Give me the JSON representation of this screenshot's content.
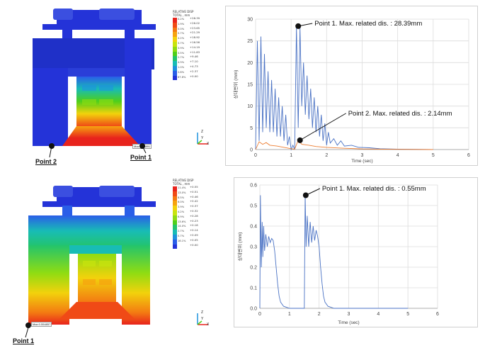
{
  "top_panel": {
    "legend_title": "RELATIVE DISP",
    "legend_subtitle": "TOTAL , mm",
    "legend_rows": [
      {
        "pct": "0.2%",
        "color": "#e8231c"
      },
      {
        "pct": "1.9%",
        "color": "#f04a16"
      },
      {
        "pct": "0.0%",
        "color": "#f37a12"
      },
      {
        "pct": "0.7%",
        "color": "#f6a30f"
      },
      {
        "pct": "4.2%",
        "color": "#f2d20c"
      },
      {
        "pct": "3.7%",
        "color": "#c8e40e"
      },
      {
        "pct": "3.9%",
        "color": "#8fdc12"
      },
      {
        "pct": "3.5%",
        "color": "#4fcf1a"
      },
      {
        "pct": "2.7%",
        "color": "#23c46c"
      },
      {
        "pct": "4.9%",
        "color": "#18bcb5"
      },
      {
        "pct": "1.0%",
        "color": "#1e92dd"
      },
      {
        "pct": "2.8%",
        "color": "#2a5ee8"
      },
      {
        "pct": "67.8%",
        "color": "#2433d8"
      }
    ],
    "legend_values": [
      "+28.39",
      "+26.02",
      "+23.65",
      "+21.29",
      "+18.92",
      "+16.56",
      "+14.19",
      "+11.83",
      "+9.46",
      "+7.10",
      "+4.73",
      "+2.37",
      "+0.00"
    ],
    "max_tag": "Max:28.3891",
    "point_labels": [
      "Point 2",
      "Point 1"
    ],
    "axis_labels": {
      "z": "Z",
      "x": "X",
      "y": "Y"
    }
  },
  "bottom_panel": {
    "legend_title": "RELATIVE DISP",
    "legend_subtitle": "TOTAL , mm",
    "legend_rows": [
      {
        "pct": "11.4%",
        "color": "#e8231c"
      },
      {
        "pct": "13.0%",
        "color": "#f04a16"
      },
      {
        "pct": "8.5%",
        "color": "#f37a12"
      },
      {
        "pct": "6.0%",
        "color": "#f6a30f"
      },
      {
        "pct": "3.9%",
        "color": "#f2d20c"
      },
      {
        "pct": "4.2%",
        "color": "#c8e40e"
      },
      {
        "pct": "6.9%",
        "color": "#8fdc12"
      },
      {
        "pct": "13.6%",
        "color": "#4fcf1a"
      },
      {
        "pct": "14.0%",
        "color": "#23c46c"
      },
      {
        "pct": "2.7%",
        "color": "#18bcb5"
      },
      {
        "pct": "0.7%",
        "color": "#1e92dd"
      },
      {
        "pct": "16.1%",
        "color": "#2a5ee8"
      },
      {
        "pct": "",
        "color": "#2433d8"
      }
    ],
    "legend_values": [
      "+0.55",
      "+0.51",
      "+0.46",
      "+0.42",
      "+0.37",
      "+0.32",
      "+0.28",
      "+0.23",
      "+0.18",
      "+0.14",
      "+0.09",
      "+0.05",
      "+0.00"
    ],
    "max_tag": "Max:0.554857",
    "point_labels": [
      "Point 1"
    ],
    "axis_labels": {
      "z": "Z",
      "x": "X",
      "y": "Y"
    }
  },
  "chart_data": [
    {
      "type": "line",
      "xlabel": "Time (sec)",
      "ylabel": "상대변위 (mm)",
      "xlim": [
        0,
        6
      ],
      "ylim": [
        0,
        30
      ],
      "xticks": [
        0,
        1,
        2,
        3,
        4,
        5,
        6
      ],
      "yticks": [
        0,
        5,
        10,
        15,
        20,
        25,
        30
      ],
      "grid": true,
      "series": [
        {
          "color": "#4a72c4",
          "x": [
            0,
            0.05,
            0.1,
            0.15,
            0.2,
            0.25,
            0.3,
            0.35,
            0.4,
            0.45,
            0.5,
            0.55,
            0.6,
            0.65,
            0.7,
            0.75,
            0.8,
            0.85,
            0.9,
            0.95,
            1.0,
            1.05,
            1.1,
            1.15,
            1.2,
            1.25,
            1.3,
            1.35,
            1.4,
            1.45,
            1.5,
            1.55,
            1.6,
            1.65,
            1.7,
            1.75,
            1.8,
            1.85,
            1.9,
            1.95,
            2.0,
            2.05,
            2.1,
            2.2,
            2.3,
            2.4,
            2.5,
            2.7,
            2.9,
            3.2,
            3.5,
            4.0,
            4.5,
            5.0
          ],
          "y": [
            0,
            25,
            2,
            26,
            4,
            22,
            5,
            18,
            4,
            16,
            4,
            14,
            3,
            12,
            3,
            10,
            2,
            8,
            1,
            3,
            0,
            1,
            0,
            28.4,
            5,
            28,
            10,
            20,
            8,
            17,
            7,
            14,
            5,
            12,
            4,
            10,
            3,
            8,
            2,
            6,
            1,
            4,
            1.5,
            2.5,
            1,
            2,
            0.8,
            1,
            0.5,
            0.4,
            0.2,
            0.1,
            0.05,
            0
          ]
        },
        {
          "color": "#ed7d31",
          "x": [
            0,
            0.1,
            0.2,
            0.3,
            0.4,
            0.6,
            0.8,
            1.0,
            1.1,
            1.2,
            1.3,
            1.5,
            1.7,
            2.0,
            2.5,
            3.0,
            4.0,
            5.0
          ],
          "y": [
            0,
            1.8,
            1.2,
            1.6,
            1.0,
            0.8,
            0.5,
            0.2,
            0.1,
            2.14,
            1.2,
            1.0,
            0.7,
            0.5,
            0.3,
            0.15,
            0.05,
            0
          ]
        }
      ],
      "annotations": [
        {
          "text": "Point 1. Max. related dis. : 28.39mm",
          "x": 1.2,
          "y": 28.39
        },
        {
          "text": "Point 2. Max. related dis. : 2.14mm",
          "x": 1.25,
          "y": 2.14
        }
      ]
    },
    {
      "type": "line",
      "xlabel": "Time (sec)",
      "ylabel": "상대변위 (mm)",
      "xlim": [
        0,
        6
      ],
      "ylim": [
        0,
        0.6
      ],
      "xticks": [
        0,
        1,
        2,
        3,
        4,
        5,
        6
      ],
      "yticks": [
        0,
        0.1,
        0.2,
        0.3,
        0.4,
        0.5,
        0.6
      ],
      "grid": true,
      "series": [
        {
          "color": "#4a72c4",
          "x": [
            0,
            0.02,
            0.05,
            0.08,
            0.1,
            0.13,
            0.16,
            0.2,
            0.25,
            0.3,
            0.35,
            0.4,
            0.45,
            0.5,
            0.55,
            0.6,
            0.65,
            0.7,
            0.8,
            1.0,
            1.2,
            1.4,
            1.5,
            1.53,
            1.56,
            1.6,
            1.65,
            1.7,
            1.75,
            1.8,
            1.85,
            1.9,
            1.95,
            2.0,
            2.05,
            2.1,
            2.15,
            2.2,
            2.3,
            2.5,
            3.0,
            4.0,
            5.0
          ],
          "y": [
            0,
            0.55,
            0.2,
            0.42,
            0.25,
            0.4,
            0.28,
            0.36,
            0.3,
            0.35,
            0.32,
            0.34,
            0.33,
            0.28,
            0.2,
            0.12,
            0.06,
            0.03,
            0.01,
            0,
            0,
            0,
            0,
            0.55,
            0.3,
            0.45,
            0.3,
            0.42,
            0.32,
            0.4,
            0.33,
            0.38,
            0.35,
            0.3,
            0.2,
            0.12,
            0.06,
            0.03,
            0.01,
            0,
            0,
            0,
            0
          ]
        }
      ],
      "annotations": [
        {
          "text": "Point 1. Max. related dis. : 0.55mm",
          "x": 1.55,
          "y": 0.55
        }
      ]
    }
  ]
}
